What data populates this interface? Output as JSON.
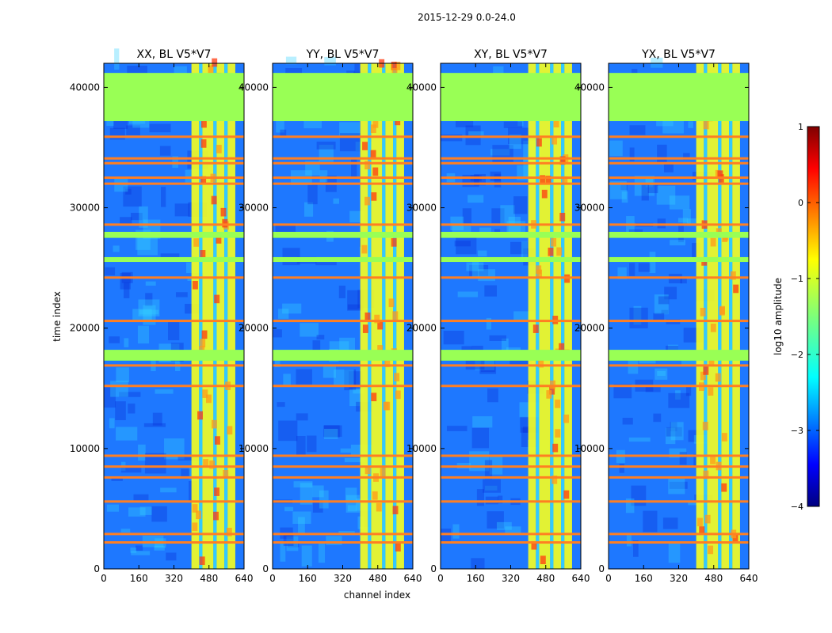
{
  "chart_data": {
    "type": "heatmap",
    "suptitle": "2015-12-29 0.0-24.0",
    "xlabel": "channel index",
    "ylabel": "time index",
    "xlim": [
      0,
      640
    ],
    "ylim": [
      0,
      42000
    ],
    "xticks": [
      0,
      160,
      320,
      480,
      640
    ],
    "xtick_labels": [
      "0",
      "160",
      "320",
      "480",
      "640"
    ],
    "yticks": [
      0,
      10000,
      20000,
      30000,
      40000
    ],
    "ytick_labels": [
      "0",
      "10000",
      "20000",
      "30000",
      "40000"
    ],
    "panels": [
      {
        "title": "XX, BL V5*V7",
        "strong_band": [
          400,
          600
        ]
      },
      {
        "title": "YY, BL V5*V7",
        "strong_band": [
          400,
          600
        ]
      },
      {
        "title": "XY, BL V5*V7",
        "strong_band": [
          400,
          600
        ]
      },
      {
        "title": "YX, BL V5*V7",
        "strong_band": [
          400,
          600
        ]
      }
    ],
    "flagged_time_ranges": [
      [
        37200,
        41200
      ],
      [
        17300,
        18200
      ],
      [
        27500,
        28000
      ],
      [
        25500,
        25900
      ]
    ],
    "rfi_time_lines": [
      35900,
      34100,
      33700,
      32500,
      32000,
      28600,
      24200,
      20600,
      16900,
      15200,
      9400,
      8500,
      7600,
      5600,
      2900,
      2200
    ],
    "colorbar": {
      "label": "log10 amplitude",
      "range": [
        -4,
        1
      ],
      "ticks": [
        1,
        0,
        -1,
        -2,
        -3,
        -4
      ],
      "tick_labels": [
        "1",
        "0",
        "−1",
        "−2",
        "−3",
        "−4"
      ],
      "colormap": "jet"
    },
    "colors": {
      "flagged": "#99ff55",
      "rfi_line": "#ff7f22",
      "background_low": "#0a2fd8",
      "background_mid": "#1e78ff",
      "band_mid": "#34d1ff",
      "band_high": "#f7ff1e",
      "band_peak": "#ff3a10"
    }
  }
}
